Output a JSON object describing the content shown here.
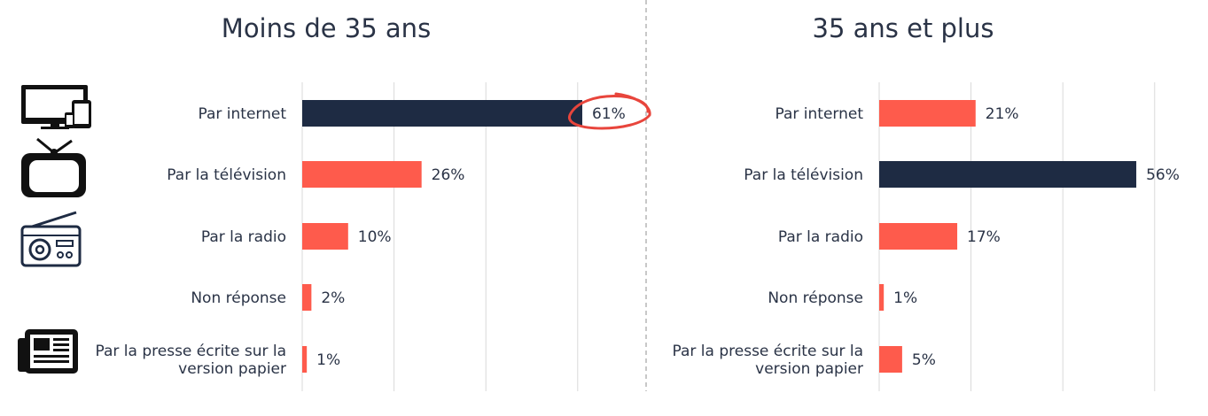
{
  "colors": {
    "highlight": "#1e2b43",
    "bar": "#fe5b4c",
    "text": "#2a3346",
    "circle": "#e8453c"
  },
  "icons": [
    "monitor-devices-icon",
    "television-icon",
    "radio-icon",
    "newspaper-icon"
  ],
  "chart_data": [
    {
      "type": "bar",
      "orientation": "horizontal",
      "title": "Moins de 35 ans",
      "categories": [
        [
          "Par internet"
        ],
        [
          "Par la télévision"
        ],
        [
          "Par la radio"
        ],
        [
          "Non réponse"
        ],
        [
          "Par la presse écrite sur la",
          "version papier"
        ]
      ],
      "values": [
        61,
        26,
        10,
        2,
        1
      ],
      "value_labels": [
        "61%",
        "26%",
        "10%",
        "2%",
        "1%"
      ],
      "highlight_index": 0,
      "circled_index": 0,
      "xlim": [
        0,
        60
      ],
      "grid": true
    },
    {
      "type": "bar",
      "orientation": "horizontal",
      "title": "35 ans et plus",
      "categories": [
        [
          "Par internet"
        ],
        [
          "Par la télévision"
        ],
        [
          "Par la radio"
        ],
        [
          "Non réponse"
        ],
        [
          "Par la presse écrite sur la",
          "version papier"
        ]
      ],
      "values": [
        21,
        56,
        17,
        1,
        5
      ],
      "value_labels": [
        "21%",
        "56%",
        "17%",
        "1%",
        "5%"
      ],
      "highlight_index": 1,
      "xlim": [
        0,
        60
      ],
      "grid": true
    }
  ]
}
